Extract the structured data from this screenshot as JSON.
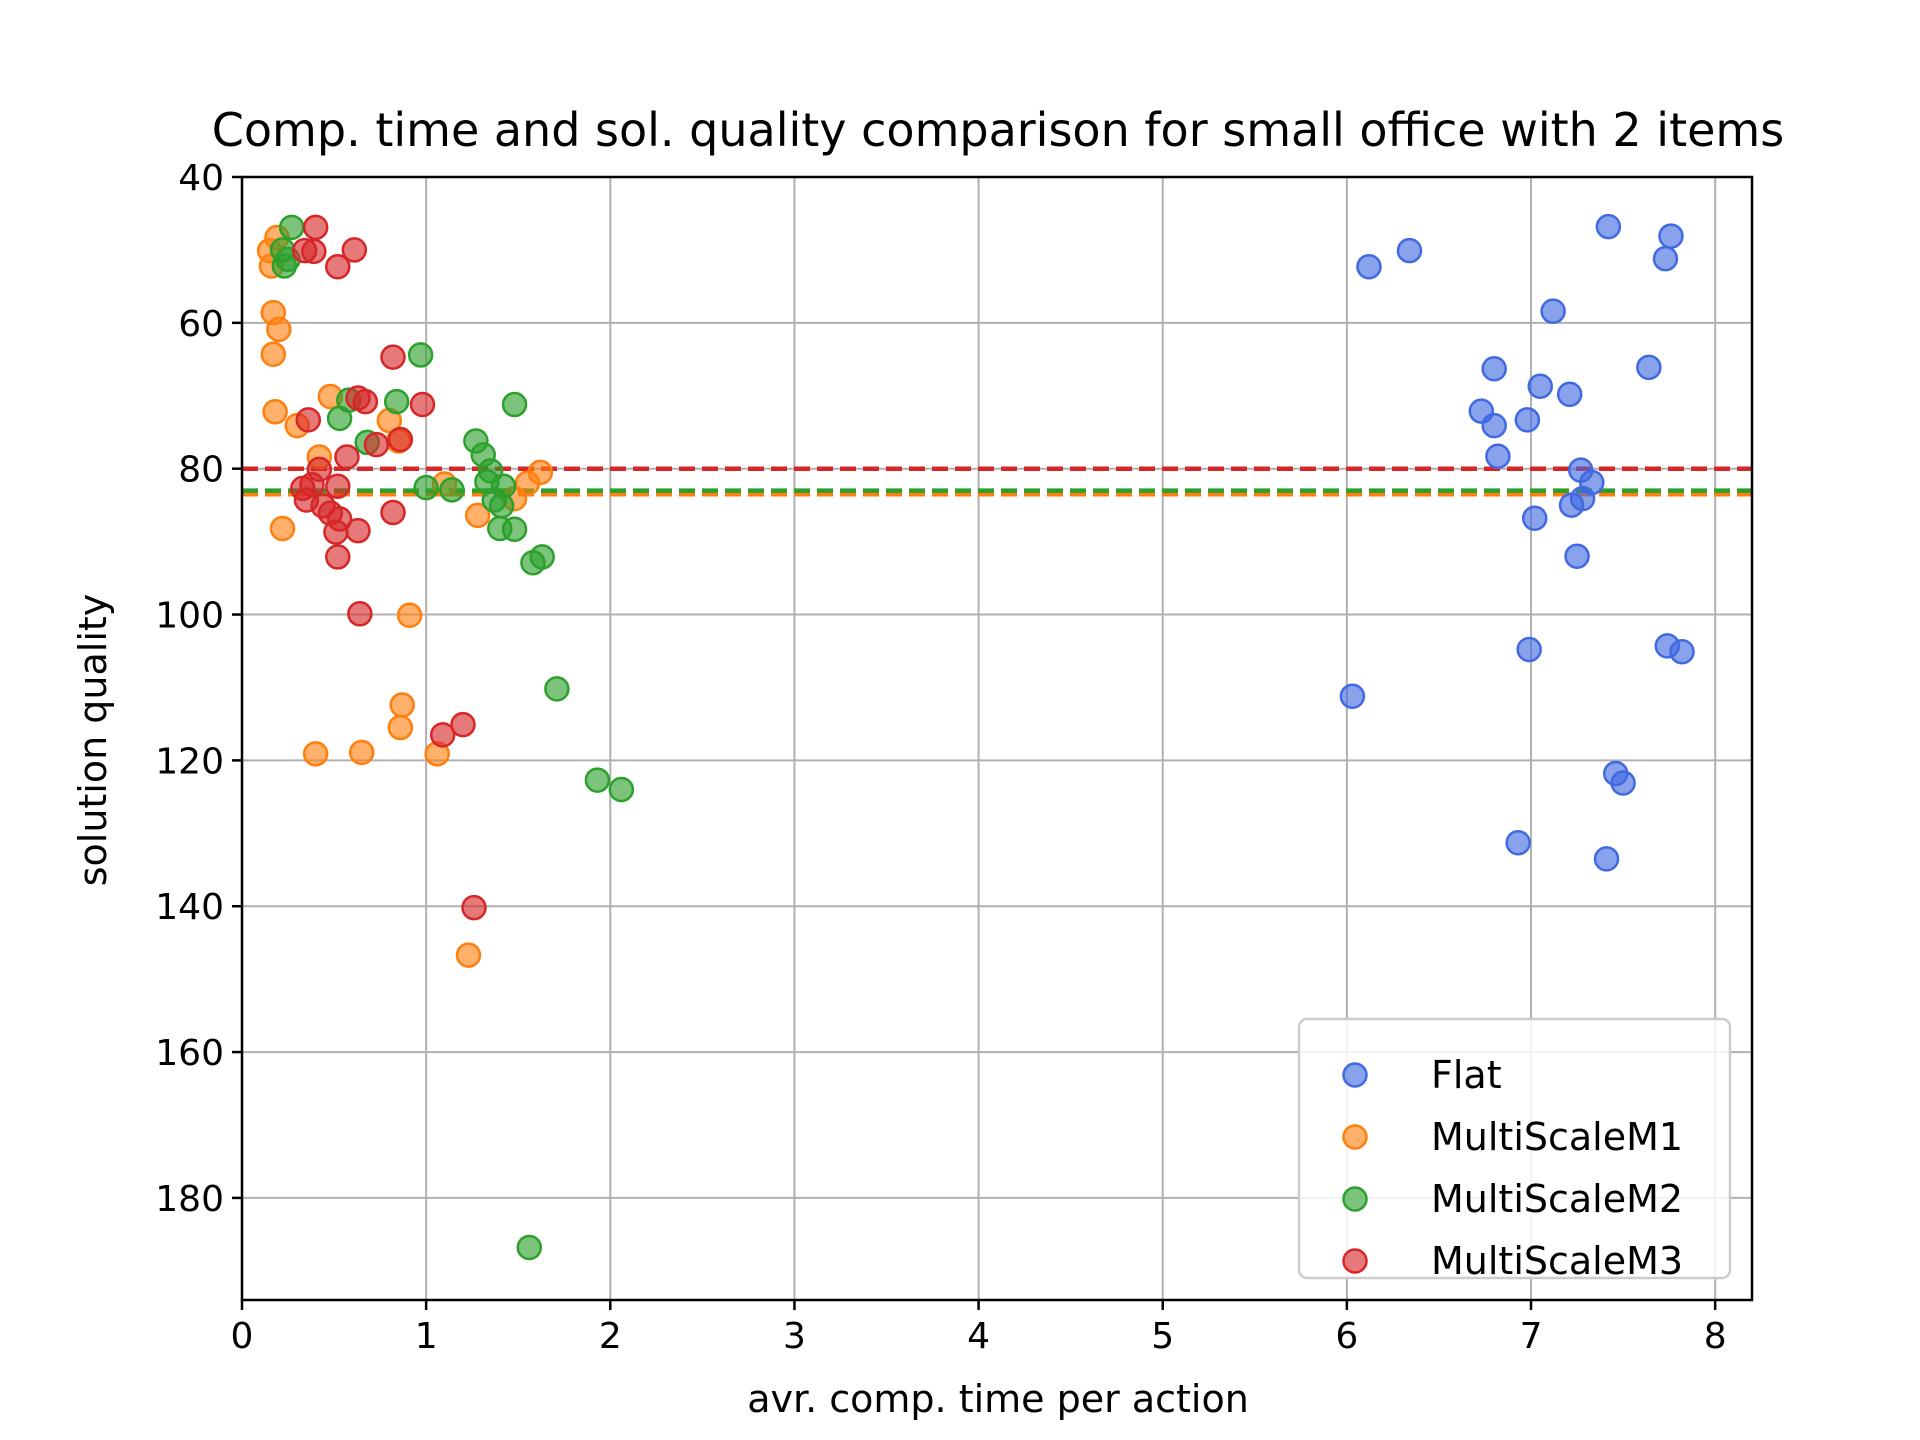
{
  "chart_data": {
    "type": "scatter",
    "title": "Comp. time and sol. quality comparison for small office with 2 items",
    "xlabel": "avr. comp. time per action",
    "ylabel": "solution quality",
    "xlim": [
      0,
      8.2
    ],
    "ylim": [
      194,
      40
    ],
    "y_inverted": true,
    "grid": true,
    "legend_position": "lower right",
    "xticks": [
      "0",
      "1",
      "2",
      "3",
      "4",
      "5",
      "6",
      "7",
      "8"
    ],
    "yticks": [
      "40",
      "60",
      "80",
      "100",
      "120",
      "140",
      "160",
      "180"
    ],
    "series": [
      {
        "name": "Flat",
        "color": "#4169e1",
        "points": [
          [
            6.12,
            52.3
          ],
          [
            6.34,
            50.1
          ],
          [
            7.42,
            46.8
          ],
          [
            7.76,
            48.1
          ],
          [
            7.73,
            51.2
          ],
          [
            7.12,
            58.4
          ],
          [
            6.8,
            66.3
          ],
          [
            7.05,
            68.7
          ],
          [
            7.21,
            69.8
          ],
          [
            7.64,
            66.1
          ],
          [
            6.73,
            72.1
          ],
          [
            6.8,
            74.1
          ],
          [
            6.98,
            73.3
          ],
          [
            6.82,
            78.3
          ],
          [
            7.27,
            80.2
          ],
          [
            7.33,
            81.9
          ],
          [
            7.22,
            85.0
          ],
          [
            7.28,
            84.1
          ],
          [
            7.02,
            86.8
          ],
          [
            7.25,
            92.0
          ],
          [
            6.99,
            104.8
          ],
          [
            7.74,
            104.3
          ],
          [
            7.82,
            105.1
          ],
          [
            6.03,
            111.2
          ],
          [
            7.46,
            121.8
          ],
          [
            7.5,
            123.1
          ],
          [
            6.93,
            131.3
          ],
          [
            7.41,
            133.5
          ]
        ]
      },
      {
        "name": "MultiScaleM1",
        "color": "#ff7f0e",
        "points": [
          [
            0.15,
            50.1
          ],
          [
            0.19,
            48.3
          ],
          [
            0.16,
            52.2
          ],
          [
            0.17,
            58.6
          ],
          [
            0.2,
            60.9
          ],
          [
            0.17,
            64.3
          ],
          [
            0.18,
            72.2
          ],
          [
            0.3,
            74.1
          ],
          [
            0.48,
            70.1
          ],
          [
            0.42,
            78.4
          ],
          [
            0.8,
            73.4
          ],
          [
            0.85,
            76.2
          ],
          [
            1.1,
            82.1
          ],
          [
            1.28,
            86.4
          ],
          [
            1.48,
            84.1
          ],
          [
            1.55,
            82.0
          ],
          [
            1.62,
            80.5
          ],
          [
            0.22,
            88.2
          ],
          [
            0.91,
            100.1
          ],
          [
            0.87,
            112.4
          ],
          [
            0.86,
            115.5
          ],
          [
            1.06,
            119.1
          ],
          [
            0.65,
            118.9
          ],
          [
            0.4,
            119.1
          ],
          [
            1.23,
            146.7
          ]
        ],
        "mean_line": 83.5
      },
      {
        "name": "MultiScaleM2",
        "color": "#2ca02c",
        "points": [
          [
            0.27,
            46.9
          ],
          [
            0.22,
            50.0
          ],
          [
            0.25,
            51.3
          ],
          [
            0.23,
            52.2
          ],
          [
            0.58,
            70.6
          ],
          [
            0.84,
            70.8
          ],
          [
            0.97,
            64.4
          ],
          [
            1.48,
            71.2
          ],
          [
            0.53,
            73.1
          ],
          [
            0.68,
            76.4
          ],
          [
            1.27,
            76.2
          ],
          [
            1.31,
            78.1
          ],
          [
            1.35,
            80.3
          ],
          [
            1.33,
            81.8
          ],
          [
            1.42,
            82.4
          ],
          [
            1.37,
            84.3
          ],
          [
            1.41,
            85.1
          ],
          [
            1.0,
            82.6
          ],
          [
            1.14,
            82.9
          ],
          [
            1.4,
            88.2
          ],
          [
            1.48,
            88.3
          ],
          [
            1.58,
            92.9
          ],
          [
            1.63,
            92.1
          ],
          [
            1.71,
            110.2
          ],
          [
            1.93,
            122.7
          ],
          [
            2.06,
            124.0
          ],
          [
            1.56,
            186.8
          ]
        ],
        "mean_line": 83.0
      },
      {
        "name": "MultiScaleM3",
        "color": "#d62728",
        "points": [
          [
            0.4,
            46.9
          ],
          [
            0.34,
            50.1
          ],
          [
            0.39,
            50.2
          ],
          [
            0.61,
            50.0
          ],
          [
            0.52,
            52.3
          ],
          [
            0.82,
            64.7
          ],
          [
            0.63,
            70.3
          ],
          [
            0.67,
            70.8
          ],
          [
            0.98,
            71.2
          ],
          [
            0.36,
            73.3
          ],
          [
            0.73,
            76.7
          ],
          [
            0.86,
            76.0
          ],
          [
            0.57,
            78.4
          ],
          [
            0.42,
            80.1
          ],
          [
            0.38,
            82.2
          ],
          [
            0.33,
            82.7
          ],
          [
            0.52,
            82.4
          ],
          [
            0.35,
            84.3
          ],
          [
            0.44,
            85.1
          ],
          [
            0.48,
            86.1
          ],
          [
            0.53,
            86.9
          ],
          [
            0.51,
            88.7
          ],
          [
            0.63,
            88.5
          ],
          [
            0.82,
            86.0
          ],
          [
            0.52,
            92.1
          ],
          [
            0.64,
            99.9
          ],
          [
            1.09,
            116.5
          ],
          [
            1.2,
            115.1
          ],
          [
            1.26,
            140.2
          ]
        ],
        "mean_line": 80.0
      }
    ]
  }
}
